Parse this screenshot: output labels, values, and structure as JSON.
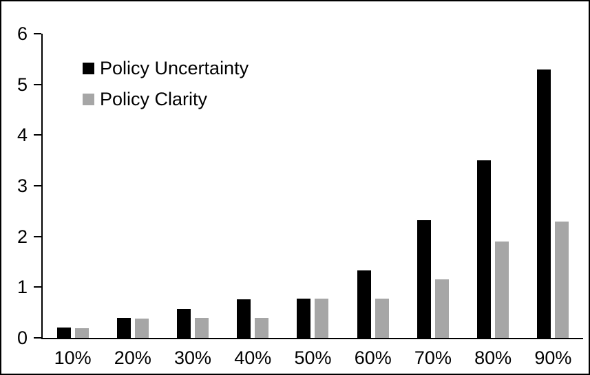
{
  "chart_data": {
    "type": "bar",
    "title": "",
    "categories": [
      "10%",
      "20%",
      "30%",
      "40%",
      "50%",
      "60%",
      "70%",
      "80%",
      "90%"
    ],
    "series": [
      {
        "name": "Policy Uncertainty",
        "color": "#000000",
        "values": [
          0.2,
          0.39,
          0.57,
          0.76,
          0.78,
          1.33,
          2.32,
          3.5,
          5.3
        ]
      },
      {
        "name": "Policy Clarity",
        "color": "#a6a6a6",
        "values": [
          0.19,
          0.38,
          0.39,
          0.39,
          0.77,
          0.78,
          1.15,
          1.9,
          2.3
        ]
      }
    ],
    "xlabel": "",
    "ylabel": "",
    "ylim": [
      0,
      6
    ],
    "yticks": [
      0,
      1,
      2,
      3,
      4,
      5,
      6
    ],
    "grid": false,
    "legend_position": "top-left-inside"
  },
  "colors": {
    "background": "#ffffff",
    "border": "#000000",
    "axis": "#000000",
    "text": "#000000",
    "series1": "#000000",
    "series2": "#a6a6a6"
  }
}
